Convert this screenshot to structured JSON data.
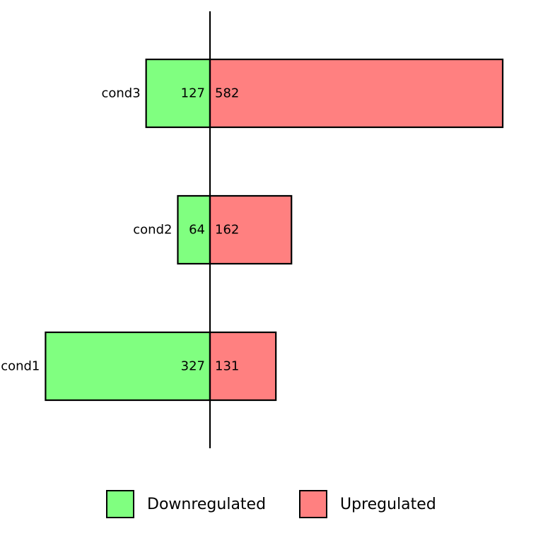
{
  "chart_data": {
    "type": "bar",
    "orientation": "horizontal-diverging",
    "categories": [
      "cond1",
      "cond2",
      "cond3"
    ],
    "series": [
      {
        "name": "Downregulated",
        "values": [
          327,
          64,
          127
        ],
        "color": "#80ff80"
      },
      {
        "name": "Upregulated",
        "values": [
          131,
          162,
          582
        ],
        "color": "#ff8080"
      }
    ],
    "xlim": [
      -327,
      582
    ],
    "grid": false,
    "legend_position": "bottom",
    "title": "",
    "xlabel": "",
    "ylabel": ""
  }
}
